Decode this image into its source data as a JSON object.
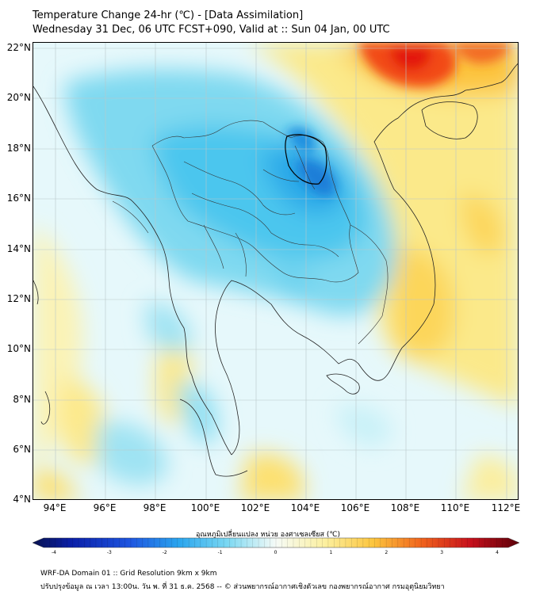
{
  "header": {
    "title_line1": "Temperature Change 24-hr (℃) - [Data Assimilation]",
    "title_line2": "Wednesday 31 Dec, 06 UTC FCST+090, Valid at :: Sun 04 Jan, 00 UTC"
  },
  "map": {
    "lat_labels": [
      "22°N",
      "20°N",
      "18°N",
      "16°N",
      "14°N",
      "12°N",
      "10°N",
      "8°N",
      "6°N",
      "4°N"
    ],
    "lon_labels": [
      "94°E",
      "96°E",
      "98°E",
      "100°E",
      "102°E",
      "104°E",
      "106°E",
      "108°E",
      "110°E",
      "112°E"
    ],
    "lat_range": [
      4,
      22.3
    ],
    "lon_range": [
      93.1,
      112.5
    ]
  },
  "colorbar": {
    "title": "อุณหภูมิเปลี่ยนแปลง หน่วย องศาเซลเซียส (℃)",
    "ticks": [
      "-4",
      "-3",
      "-2",
      "-1",
      "0",
      "1",
      "2",
      "3",
      "4"
    ],
    "min": -4,
    "max": 4
  },
  "footer": {
    "line1": "WRF-DA Domain 01 :: Grid Resolution 9km x 9km",
    "line2": "ปรับปรุงข้อมูล ณ เวลา 13:00น. วัน พ. ที่ 31 ธ.ค. 2568 -- © ส่วนพยากรณ์อากาศเชิงตัวเลข กองพยากรณ์อากาศ กรมอุตุนิยมวิทยา"
  }
}
